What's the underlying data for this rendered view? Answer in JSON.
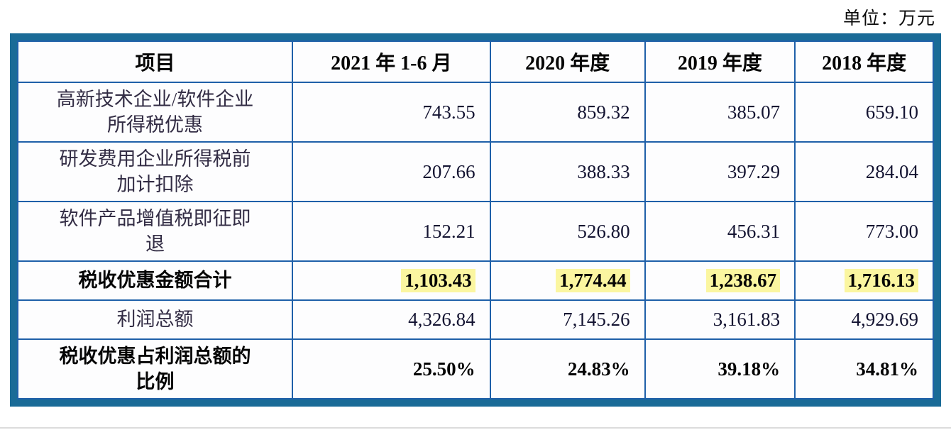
{
  "unit_label": "单位：万元",
  "table": {
    "columns": [
      "项目",
      "2021 年 1-6 月",
      "2020 年度",
      "2019 年度",
      "2018 年度"
    ],
    "rows": [
      {
        "label": "高新技术企业/软件企业\n所得税优惠",
        "values": [
          "743.55",
          "859.32",
          "385.07",
          "659.10"
        ],
        "bold": false,
        "highlight": false,
        "tall": true
      },
      {
        "label": "研发费用企业所得税前\n加计扣除",
        "values": [
          "207.66",
          "388.33",
          "397.29",
          "284.04"
        ],
        "bold": false,
        "highlight": false,
        "tall": true
      },
      {
        "label": "软件产品增值税即征即\n退",
        "values": [
          "152.21",
          "526.80",
          "456.31",
          "773.00"
        ],
        "bold": false,
        "highlight": false,
        "tall": true
      },
      {
        "label": "税收优惠金额合计",
        "values": [
          "1,103.43",
          "1,774.44",
          "1,238.67",
          "1,716.13"
        ],
        "bold": true,
        "highlight": true,
        "tall": false
      },
      {
        "label": "利润总额",
        "values": [
          "4,326.84",
          "7,145.26",
          "3,161.83",
          "4,929.69"
        ],
        "bold": false,
        "highlight": false,
        "tall": false
      },
      {
        "label": "税收优惠占利润总额的\n比例",
        "values": [
          "25.50%",
          "24.83%",
          "39.18%",
          "34.81%"
        ],
        "bold": true,
        "highlight": false,
        "tall": true
      }
    ]
  },
  "colors": {
    "outer_border": "#1a6b97",
    "inner_border": "#1f60a9",
    "highlight": "#fbf6a0",
    "text": "#131331"
  }
}
